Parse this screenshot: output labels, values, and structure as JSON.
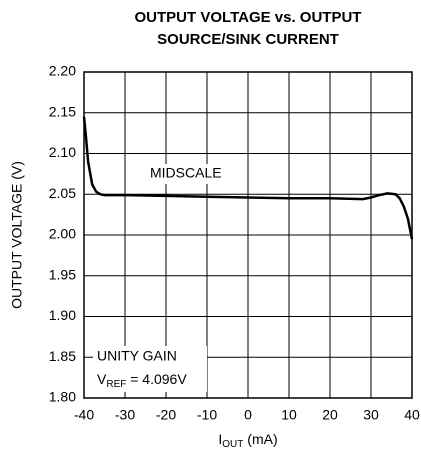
{
  "chart_data": {
    "type": "line",
    "title": [
      "OUTPUT VOLTAGE vs. OUTPUT",
      "SOURCE/SINK CURRENT"
    ],
    "ylabel": "OUTPUT VOLTAGE (V)",
    "xlabel": [
      "I",
      "OUT",
      " (mA)"
    ],
    "annotations": [
      "MIDSCALE",
      "UNITY GAIN"
    ],
    "vref_note": [
      "V",
      "REF",
      " = 4.096V"
    ],
    "xlim": [
      -40,
      40
    ],
    "xticks": [
      -40,
      -30,
      -20,
      -10,
      0,
      10,
      20,
      30,
      40
    ],
    "ylim": [
      1.8,
      2.2
    ],
    "yticks": [
      {
        "value": 1.8,
        "label": "1.80"
      },
      1.85,
      {
        "value": 1.9,
        "label": "1.90"
      },
      1.95,
      {
        "value": 2.0,
        "label": "2.00"
      },
      2.05,
      {
        "value": 2.1,
        "label": "2.10"
      },
      2.15,
      {
        "value": 2.2,
        "label": "2.20"
      }
    ],
    "grid": true,
    "series": [
      {
        "color": "#000000",
        "x": [
          -40,
          -39.5,
          -39,
          -38,
          -37,
          -36,
          -35,
          -30,
          -20,
          -10,
          0,
          10,
          20,
          28,
          30,
          32,
          34,
          36,
          37,
          38,
          39,
          40
        ],
        "values": [
          2.145,
          2.12,
          2.09,
          2.062,
          2.053,
          2.05,
          2.049,
          2.049,
          2.048,
          2.047,
          2.046,
          2.045,
          2.045,
          2.044,
          2.046,
          2.049,
          2.051,
          2.05,
          2.045,
          2.035,
          2.02,
          1.995
        ]
      }
    ]
  }
}
